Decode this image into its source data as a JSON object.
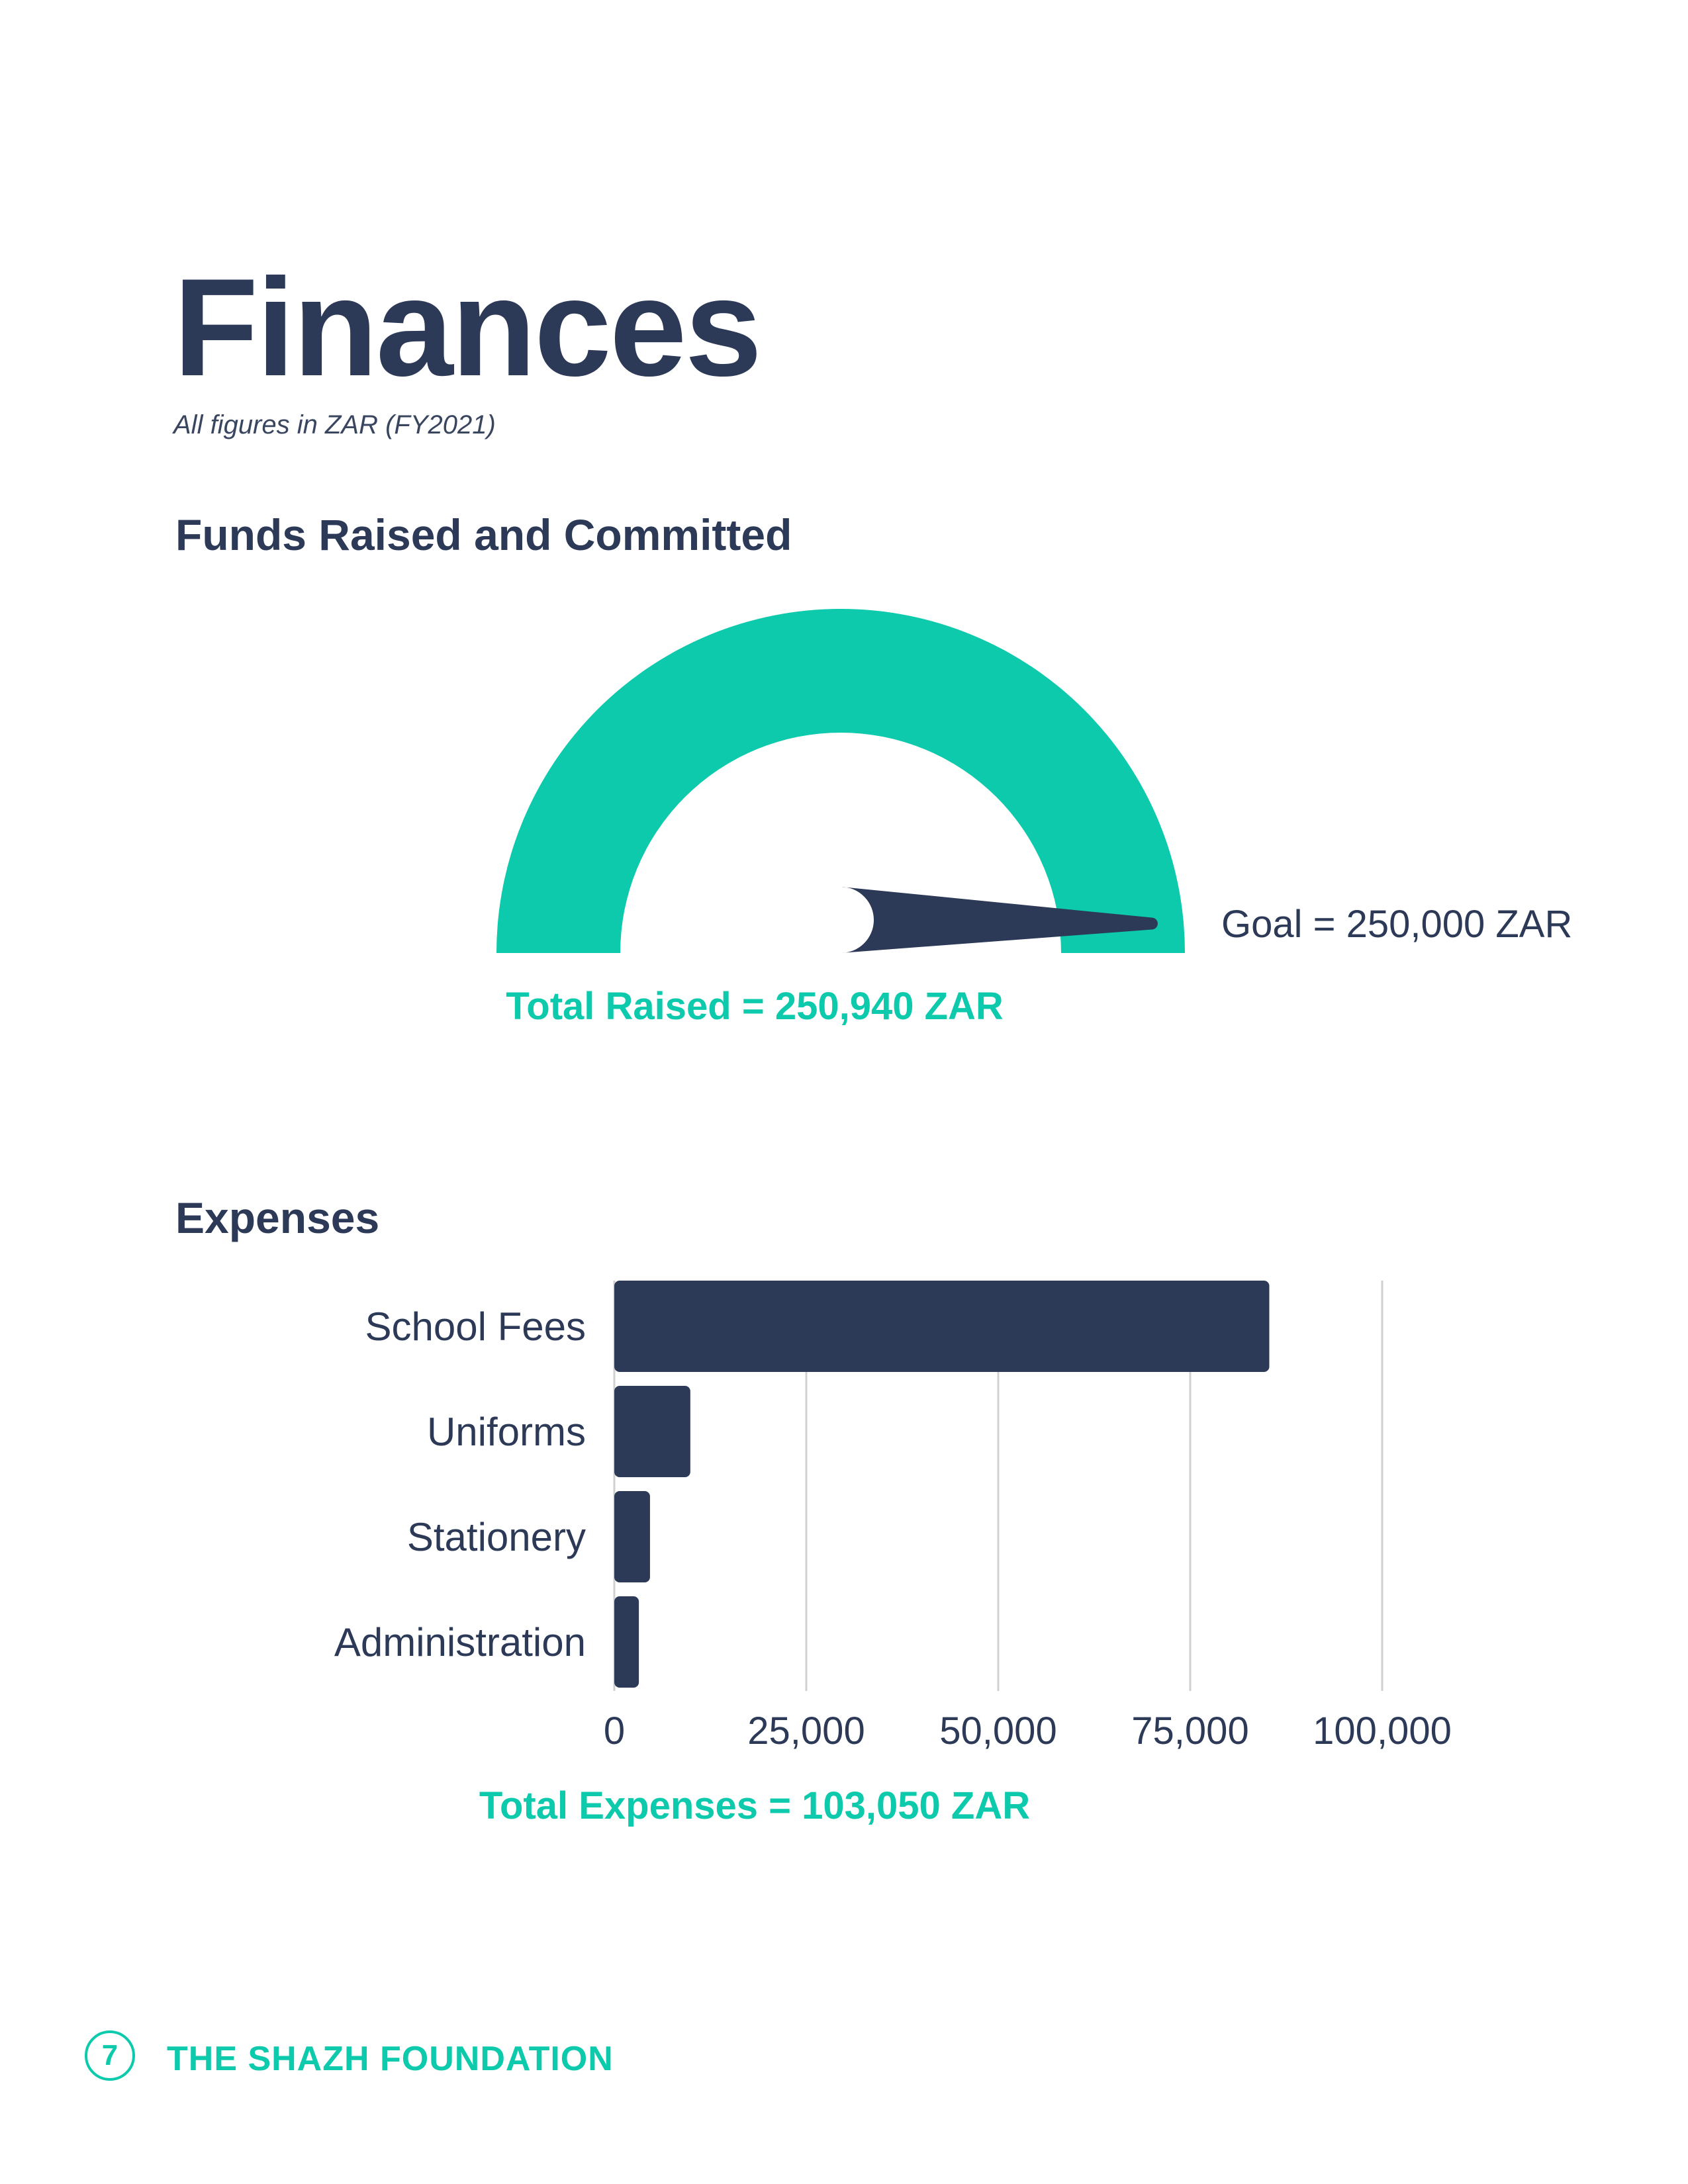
{
  "page": {
    "title": "Finances",
    "subtitle": "All figures in ZAR (FY2021)",
    "colors": {
      "accent": "#0ccaab",
      "navy": "#2c3a57",
      "grid": "#d0d0d0"
    }
  },
  "funds": {
    "heading": "Funds Raised and Committed",
    "goal_label": "Goal = 250,000 ZAR",
    "total_label": "Total Raised = 250,940 ZAR"
  },
  "expenses": {
    "heading": "Expenses",
    "total_label": "Total Expenses = 103,050 ZAR"
  },
  "footer": {
    "page_number": "7",
    "organization": "THE SHAZH FOUNDATION"
  },
  "chart_data": [
    {
      "type": "gauge",
      "title": "Funds Raised and Committed",
      "value": 250940,
      "min": 0,
      "max": 250000,
      "goal": 250000,
      "fill_color": "#0ccaab",
      "needle_color": "#2c3a57"
    },
    {
      "type": "bar",
      "orientation": "horizontal",
      "title": "Expenses",
      "categories": [
        "School Fees",
        "Uniforms",
        "Stationery",
        "Administration"
      ],
      "values": [
        85300,
        9900,
        4650,
        3200
      ],
      "xlim": [
        0,
        100000
      ],
      "xticks": [
        0,
        25000,
        50000,
        75000,
        100000
      ],
      "xtick_labels": [
        "0",
        "25,000",
        "50,000",
        "75,000",
        "100,000"
      ],
      "grid": true,
      "bar_color": "#2c3a57"
    }
  ]
}
